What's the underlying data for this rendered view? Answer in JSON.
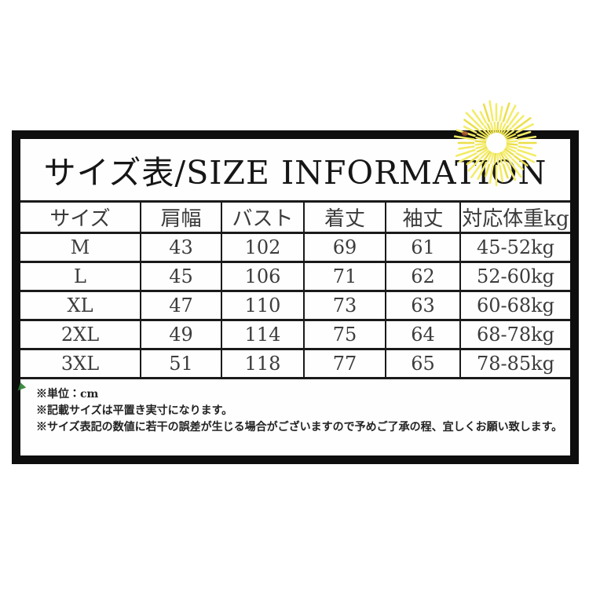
{
  "panel": {
    "title": "サイズ表/SIZE INFORMATION",
    "frame_color": "#0e0e0e"
  },
  "size_table": {
    "columns": [
      "サイズ",
      "肩幅",
      "バスト",
      "着丈",
      "袖丈",
      "対応体重kg"
    ],
    "rows": [
      [
        "M",
        "43",
        "102",
        "69",
        "61",
        "45-52kg"
      ],
      [
        "L",
        "45",
        "106",
        "71",
        "62",
        "52-60kg"
      ],
      [
        "XL",
        "47",
        "110",
        "73",
        "63",
        "60-68kg"
      ],
      [
        "2XL",
        "49",
        "114",
        "75",
        "64",
        "68-78kg"
      ],
      [
        "3XL",
        "51",
        "118",
        "77",
        "65",
        "78-85kg"
      ]
    ]
  },
  "notes": [
    "※単位：cm",
    "※記載サイズは平置き実寸になります。",
    "※サイズ表記の数値に若干の誤差が生じる場合がございますので予めご了承の程、宜しくお願い致します。"
  ],
  "decor": {
    "sunflower_icon": "sunflower",
    "flower_color": "#f3ec66",
    "flower_color_dark": "#ebdf49",
    "artifact_red": "#a8502e",
    "artifact_green": "#2e7d33"
  }
}
